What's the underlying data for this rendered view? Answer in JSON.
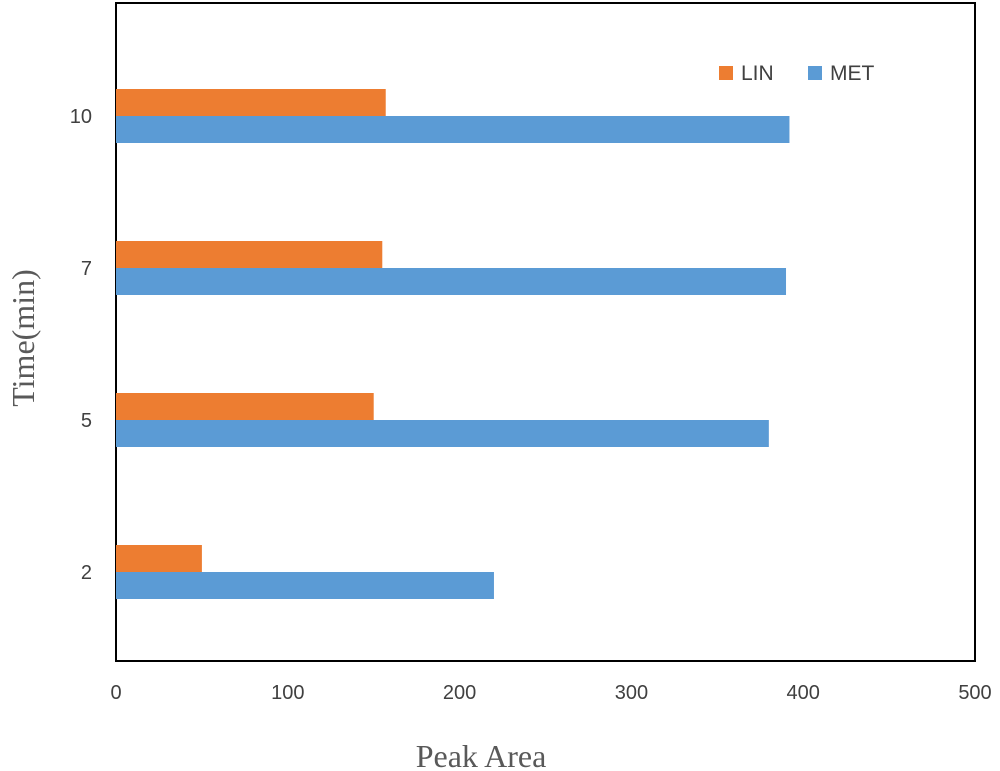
{
  "chart_data": {
    "type": "bar",
    "orientation": "horizontal",
    "categories": [
      "2",
      "5",
      "7",
      "10"
    ],
    "series": [
      {
        "name": "LIN",
        "values": [
          50,
          150,
          155,
          157
        ],
        "color": "#ED7D31"
      },
      {
        "name": "MET",
        "values": [
          220,
          380,
          390,
          392
        ],
        "color": "#5B9BD5"
      }
    ],
    "xlabel": "Peak Area",
    "ylabel": "Time(min)",
    "xlim": [
      0,
      500
    ],
    "xticks": [
      0,
      100,
      200,
      300,
      400,
      500
    ],
    "legend_position": "top-right",
    "grid": false
  }
}
